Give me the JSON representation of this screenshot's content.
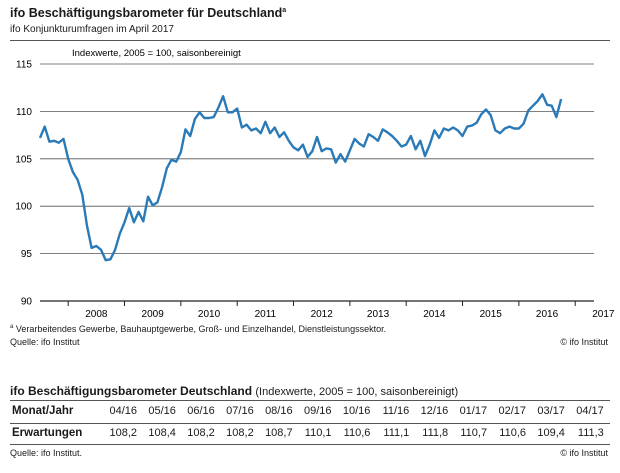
{
  "header": {
    "title": "ifo Beschäftigungsbarometer für Deutschland",
    "title_sup": "a",
    "subtitle": "ifo Konjunkturumfragen im April 2017"
  },
  "chart_data": {
    "type": "line",
    "annotation": "Indexwerte, 2005 = 100, saisonbereinigt",
    "ylim": [
      90,
      115
    ],
    "yticks": [
      90,
      95,
      100,
      105,
      110,
      115
    ],
    "x_start": "2007-07",
    "x_end": "2017-04",
    "year_labels": [
      "2008",
      "2009",
      "2010",
      "2011",
      "2012",
      "2013",
      "2014",
      "2015",
      "2016",
      "2017"
    ],
    "grid": true,
    "line_color": "#2a7ab8",
    "series": [
      {
        "values": [
          107.2,
          108.4,
          106.8,
          106.9,
          106.7,
          107.1,
          105.0,
          103.6,
          102.8,
          101.2,
          98.0,
          95.6,
          95.8,
          95.4,
          94.3,
          94.4,
          95.4,
          97.1,
          98.3,
          99.8,
          98.3,
          99.4,
          98.4,
          101.0,
          100.1,
          100.4,
          102.0,
          104.0,
          104.9,
          104.7,
          105.7,
          108.1,
          107.4,
          109.2,
          109.9,
          109.3,
          109.3,
          109.4,
          110.4,
          111.6,
          109.9,
          109.9,
          110.3,
          108.3,
          108.6,
          108.0,
          108.2,
          107.7,
          108.9,
          107.7,
          108.3,
          107.3,
          107.8,
          106.9,
          106.2,
          105.9,
          106.5,
          105.2,
          105.8,
          107.3,
          105.8,
          106.1,
          106.0,
          104.6,
          105.5,
          104.7,
          105.9,
          107.1,
          106.6,
          106.3,
          107.6,
          107.3,
          106.9,
          108.1,
          107.8,
          107.4,
          106.9,
          106.3,
          106.5,
          107.4,
          106.0,
          106.9,
          105.3,
          106.5,
          108.0,
          107.2,
          108.2,
          108.0,
          108.3,
          108.0,
          107.4,
          108.4,
          108.5,
          108.8,
          109.7,
          110.2,
          109.6,
          108.0,
          107.7,
          108.2,
          108.4,
          108.2,
          108.2,
          108.7,
          110.1,
          110.6,
          111.1,
          111.8,
          110.7,
          110.6,
          109.4,
          111.3
        ]
      }
    ]
  },
  "footnote": {
    "marker": "a",
    "text": "Verarbeitendes Gewerbe, Bauhauptgewerbe, Groß- und Einzelhandel, Dienstleistungssektor.",
    "source": "Quelle: ifo Institut",
    "copyright": "© ifo Institut"
  },
  "table": {
    "title": "ifo Beschäftigungsbarometer Deutschland",
    "title_paren": "(Indexwerte, 2005 = 100, saisonbereinigt)",
    "row_headers": [
      "Monat/Jahr",
      "Erwartungen"
    ],
    "months": [
      "04/16",
      "05/16",
      "06/16",
      "07/16",
      "08/16",
      "09/16",
      "10/16",
      "11/16",
      "12/16",
      "01/17",
      "02/17",
      "03/17",
      "04/17"
    ],
    "values": [
      "108,2",
      "108,4",
      "108,2",
      "108,2",
      "108,7",
      "110,1",
      "110,6",
      "111,1",
      "111,8",
      "110,7",
      "110,6",
      "109,4",
      "111,3"
    ],
    "source": "Quelle: ifo Institut.",
    "copyright": "© ifo Institut"
  }
}
